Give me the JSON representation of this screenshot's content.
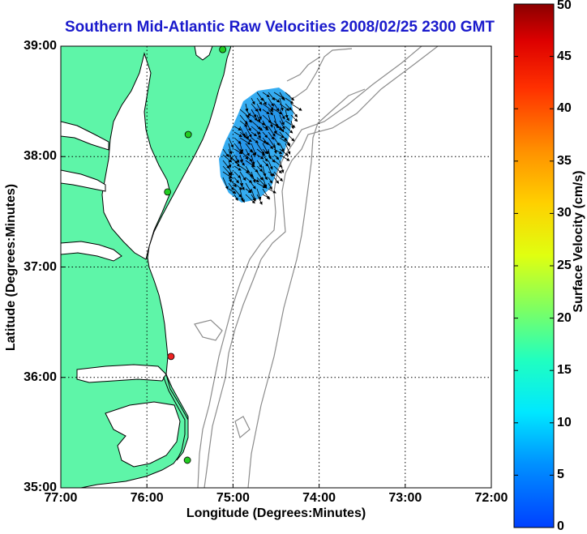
{
  "title": "Southern Mid-Atlantic Raw Velocities 2008/02/25 2300 GMT",
  "axes": {
    "xlabel": "Longitude (Degrees:Minutes)",
    "ylabel": "Latitude (Degrees:Minutes)",
    "x_ticks": [
      "77:00",
      "76:00",
      "75:00",
      "74:00",
      "73:00",
      "72:00"
    ],
    "y_ticks": [
      "39:00",
      "38:00",
      "37:00",
      "36:00",
      "35:00"
    ],
    "grid": "dotted"
  },
  "colorbar": {
    "label": "Surface Velocity (cm/s)",
    "ticks": [
      "50",
      "45",
      "40",
      "35",
      "30",
      "25",
      "20",
      "15",
      "10",
      "5",
      "0"
    ],
    "range": [
      0,
      50
    ],
    "colormap": "jet"
  },
  "colors": {
    "land": "#5ef5a8",
    "water": "#ffffff",
    "coast": "#000000",
    "bathymetry": "#8c8c8c",
    "vector_field": "#2aa8f0",
    "arrows": "#000000",
    "title": "#1a1acc"
  },
  "map": {
    "extent": {
      "lon": [
        -77,
        -72
      ],
      "lat": [
        35,
        39
      ]
    },
    "stations": [
      {
        "lon": -75.12,
        "lat": 38.97,
        "color": "#22cc22"
      },
      {
        "lon": -75.52,
        "lat": 38.2,
        "color": "#22cc22"
      },
      {
        "lon": -75.76,
        "lat": 37.68,
        "color": "#22cc22"
      },
      {
        "lon": -75.72,
        "lat": 36.19,
        "color": "#ee2222"
      },
      {
        "lon": -75.53,
        "lat": 35.25,
        "color": "#22cc22"
      }
    ],
    "velocity_field_speed_range": [
      5,
      10
    ]
  }
}
